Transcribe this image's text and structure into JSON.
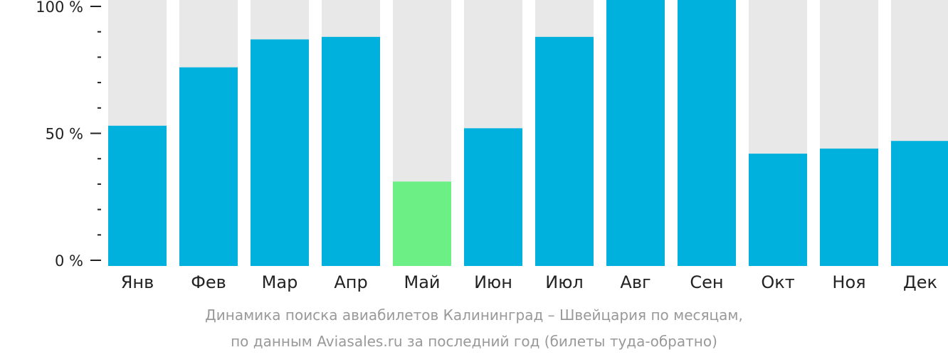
{
  "chart_data": {
    "type": "bar",
    "categories": [
      "Янв",
      "Фев",
      "Мар",
      "Апр",
      "Май",
      "Июн",
      "Июл",
      "Авг",
      "Сен",
      "Окт",
      "Ноя",
      "Дек"
    ],
    "values": [
      53,
      76,
      87,
      88,
      31,
      52,
      88,
      104,
      105,
      42,
      44,
      47
    ],
    "highlight_index": 4,
    "ylim": [
      0,
      100
    ],
    "yticks": [
      "100 %",
      "50 %",
      "0 %"
    ],
    "caption_line1": "Динамика поиска авиабилетов Калининград – Швейцария по месяцам,",
    "caption_line2": "по данным Aviasales.ru за последний год (билеты туда-обратно)",
    "colors": {
      "bar": "#00b0dd",
      "highlight": "#6cf085",
      "background_bar": "#e8e8e8",
      "axis": "#222222",
      "caption": "#999999"
    }
  }
}
